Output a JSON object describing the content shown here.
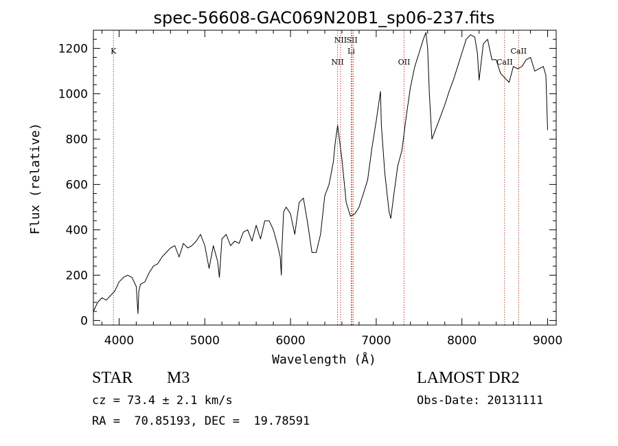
{
  "chart_data": {
    "type": "line",
    "title": "spec-56608-GAC069N20B1_sp06-237.fits",
    "xlabel": "Wavelength (Å)",
    "ylabel": "Flux (relative)",
    "xlim": [
      3700,
      9100
    ],
    "ylim": [
      -20,
      1280
    ],
    "xticks": [
      4000,
      5000,
      6000,
      7000,
      8000,
      9000
    ],
    "yticks": [
      0,
      200,
      400,
      600,
      800,
      1000,
      1200
    ],
    "grid": false,
    "line_color": "#000000",
    "marker_color": "#c0392b",
    "series": [
      {
        "x": [
          3700,
          3750,
          3800,
          3850,
          3900,
          3950,
          4000,
          4050,
          4100,
          4150,
          4200,
          4220,
          4230,
          4250,
          4300,
          4350,
          4400,
          4450,
          4500,
          4550,
          4600,
          4650,
          4700,
          4750,
          4800,
          4850,
          4900,
          4950,
          5000,
          5050,
          5100,
          5150,
          5170,
          5200,
          5250,
          5300,
          5350,
          5400,
          5450,
          5500,
          5550,
          5600,
          5650,
          5700,
          5750,
          5800,
          5850,
          5880,
          5893,
          5900,
          5920,
          5950,
          6000,
          6050,
          6100,
          6150,
          6200,
          6250,
          6300,
          6350,
          6400,
          6450,
          6500,
          6520,
          6550,
          6600,
          6650,
          6700,
          6750,
          6800,
          6850,
          6900,
          6950,
          7000,
          7050,
          7060,
          7100,
          7150,
          7170,
          7200,
          7250,
          7300,
          7350,
          7400,
          7450,
          7500,
          7550,
          7580,
          7600,
          7620,
          7650,
          7700,
          7750,
          7800,
          7850,
          7900,
          7950,
          8000,
          8050,
          8100,
          8150,
          8180,
          8200,
          8250,
          8300,
          8350,
          8400,
          8450,
          8500,
          8550,
          8600,
          8650,
          8700,
          8750,
          8800,
          8850,
          8900,
          8950,
          8980,
          9000
        ],
        "y": [
          40,
          80,
          100,
          90,
          110,
          130,
          170,
          190,
          200,
          190,
          150,
          30,
          130,
          160,
          170,
          210,
          240,
          250,
          280,
          300,
          320,
          330,
          280,
          340,
          320,
          330,
          350,
          380,
          330,
          230,
          330,
          260,
          190,
          360,
          380,
          330,
          350,
          340,
          390,
          400,
          350,
          420,
          360,
          440,
          440,
          400,
          330,
          280,
          200,
          320,
          480,
          500,
          470,
          380,
          520,
          540,
          430,
          300,
          300,
          380,
          550,
          600,
          700,
          780,
          860,
          710,
          520,
          460,
          470,
          500,
          560,
          620,
          760,
          880,
          1010,
          860,
          650,
          480,
          450,
          540,
          680,
          750,
          900,
          1030,
          1120,
          1180,
          1240,
          1270,
          1200,
          1000,
          800,
          850,
          900,
          950,
          1010,
          1060,
          1120,
          1180,
          1240,
          1260,
          1250,
          1180,
          1060,
          1220,
          1240,
          1150,
          1150,
          1090,
          1070,
          1050,
          1120,
          1110,
          1120,
          1150,
          1160,
          1100,
          1110,
          1120,
          1080,
          840
        ]
      }
    ],
    "line_markers": [
      {
        "name": "K",
        "x": 3934,
        "level": "upper"
      },
      {
        "name": "NII",
        "x": 6549,
        "level": "lower"
      },
      {
        "name": "NII",
        "x": 6584,
        "level": "upper"
      },
      {
        "name": "SII",
        "x": 6717,
        "level": "upper"
      },
      {
        "name": "Li",
        "x": 6708,
        "level": "middle"
      },
      {
        "name": "SII",
        "x": 6731,
        "level": "none"
      },
      {
        "name": "OII",
        "x": 7325,
        "level": "lower"
      },
      {
        "name": "CaII",
        "x": 8498,
        "level": "lower"
      },
      {
        "name": "CaII",
        "x": 8662,
        "level": "upper"
      }
    ]
  },
  "info": {
    "object_class": "STAR",
    "subclass": "M3",
    "survey": "LAMOST DR2",
    "cz_line": "cz = 73.4 ± 2.1 km/s",
    "obs_date_line": "Obs-Date: 20131111",
    "radec_line": "RA =  70.85193, DEC =  19.78591"
  }
}
